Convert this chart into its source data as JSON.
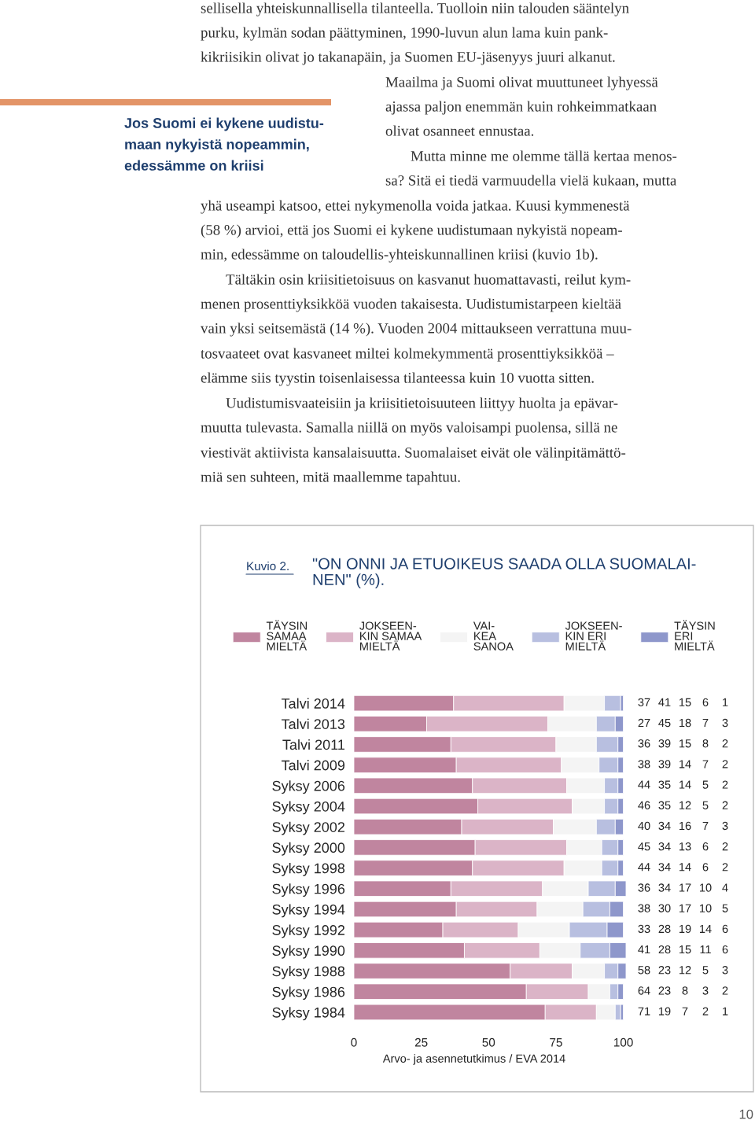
{
  "chart_data": {
    "type": "bar",
    "orientation": "horizontal",
    "stacked": true,
    "title": "Kuvio 2.",
    "subtitle": "\"ON ONNI JA ETUOIKEUS SAADA OLLA SUOMALAI-\nNEN\" (%).",
    "categories": [
      "Talvi 2014",
      "Talvi 2013",
      "Talvi 2011",
      "Talvi 2009",
      "Syksy 2006",
      "Syksy 2004",
      "Syksy 2002",
      "Syksy 2000",
      "Syksy 1998",
      "Syksy 1996",
      "Syksy 1994",
      "Syksy 1992",
      "Syksy 1990",
      "Syksy 1988",
      "Syksy 1986",
      "Syksy 1984"
    ],
    "series": [
      {
        "name": "TÄYSIN\nSAMAA\nMIELTÄ",
        "color": "#c0859f",
        "values": [
          37,
          27,
          36,
          38,
          44,
          46,
          40,
          45,
          44,
          36,
          38,
          33,
          41,
          58,
          64,
          71
        ]
      },
      {
        "name": "JOKSEEN-\nKIN SAMAA\nMIELTÄ",
        "color": "#dbb4c7",
        "values": [
          41,
          45,
          39,
          39,
          35,
          35,
          34,
          34,
          34,
          34,
          30,
          28,
          28,
          23,
          23,
          19
        ]
      },
      {
        "name": "VAI-\nKEA\nSANOA",
        "color": "#f4f4f4",
        "values": [
          15,
          18,
          15,
          14,
          14,
          12,
          16,
          13,
          14,
          17,
          17,
          19,
          15,
          12,
          8,
          7
        ]
      },
      {
        "name": "JOKSEEN-\nKIN ERI\nMIELTÄ",
        "color": "#b8bfe0",
        "values": [
          6,
          7,
          8,
          7,
          5,
          5,
          7,
          6,
          6,
          10,
          10,
          14,
          11,
          5,
          3,
          2
        ]
      },
      {
        "name": "TÄYSIN\nERI\nMIELTÄ",
        "color": "#8e97cb",
        "values": [
          1,
          3,
          2,
          2,
          2,
          2,
          3,
          2,
          2,
          4,
          5,
          6,
          6,
          3,
          2,
          1
        ]
      }
    ],
    "xlim": [
      0,
      101
    ],
    "xticks": [
      0,
      25,
      50,
      75,
      100
    ],
    "data_labels": true,
    "legend": "top",
    "grid": false,
    "annotations": [
      "sellisella yhteiskunnallisella tilanteella. Tuolloin niin talouden sääntelyn",
      "purku, kylmän sodan päättyminen, 1990-luvun alun lama kuin pank-",
      "kikriisikin olivat jo takanapäin, ja Suomen EU-jäsenyys juuri alkanut.",
      "Maailma ja Suomi olivat muuttuneet lyhyessä",
      "ajassa paljon enemmän kuin rohkeimmatkaan",
      "olivat osanneet ennustaa.",
      "Mutta minne me olemme tällä kertaa menos-",
      "sa? Sitä ei tiedä varmuudella vielä kukaan, mutta",
      "yhä useampi katsoo, ettei nykymenolla voida jatkaa. Kuusi kymmenestä",
      "(58 %) arvioi, että jos Suomi ei kykene uudistumaan nykyistä nopeam-",
      "min, edessämme on taloudellis-yhteiskunnallinen kriisi (kuvio 1b).",
      "Tältäkin osin kriisitietoisuus on kasvanut huomattavasti, reilut kym-",
      "menen prosenttiyksikköä vuoden takaisesta. Uudistumistarpeen kieltää",
      "vain yksi seitsemästä (14 %). Vuoden 2004 mittaukseen verrattuna muu-",
      "tosvaateet ovat kasvaneet miltei kolmekymmentä prosenttiyksikköä –",
      "elämme siis tyystin toisenlaisessa tilanteessa kuin 10 vuotta sitten.",
      "Uudistumisvaateisiin ja kriisitietoisuuteen liittyy huolta ja epävar-",
      "muutta tulevasta. Samalla niillä on myös valoisampi puolensa, sillä ne",
      "viestivät aktiivista kansalaisuutta. Suomalaiset eivät ole välinpitämättö-",
      "miä sen suhteen, mitä maallemme tapahtuu.",
      "Jos Suomi ei kykene uudistu-",
      "maan nykyistä nopeammin,",
      "edessämme on kriisi",
      "Arvo- ja asennetutkimus / EVA 2014",
      "10"
    ]
  }
}
